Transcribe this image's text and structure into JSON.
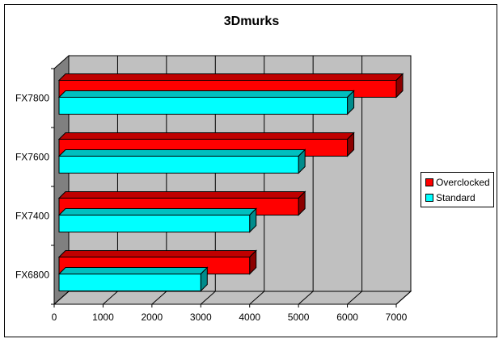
{
  "chart_data": {
    "type": "bar",
    "orientation": "horizontal",
    "title": "3Dmurks",
    "categories": [
      "FX6800",
      "FX7400",
      "FX7600",
      "FX7800"
    ],
    "series": [
      {
        "name": "Overclocked",
        "values": [
          4000,
          5000,
          6000,
          7000
        ],
        "color": "#ff0000"
      },
      {
        "name": "Standard",
        "values": [
          3000,
          4000,
          5000,
          6000
        ],
        "color": "#00ffff"
      }
    ],
    "xticks": [
      "0",
      "1000",
      "2000",
      "3000",
      "4000",
      "5000",
      "6000",
      "7000"
    ],
    "xlim": [
      0,
      7000
    ],
    "grid": true,
    "legend_position": "right",
    "style": "3d",
    "plot_background": "#c0c0c0"
  }
}
